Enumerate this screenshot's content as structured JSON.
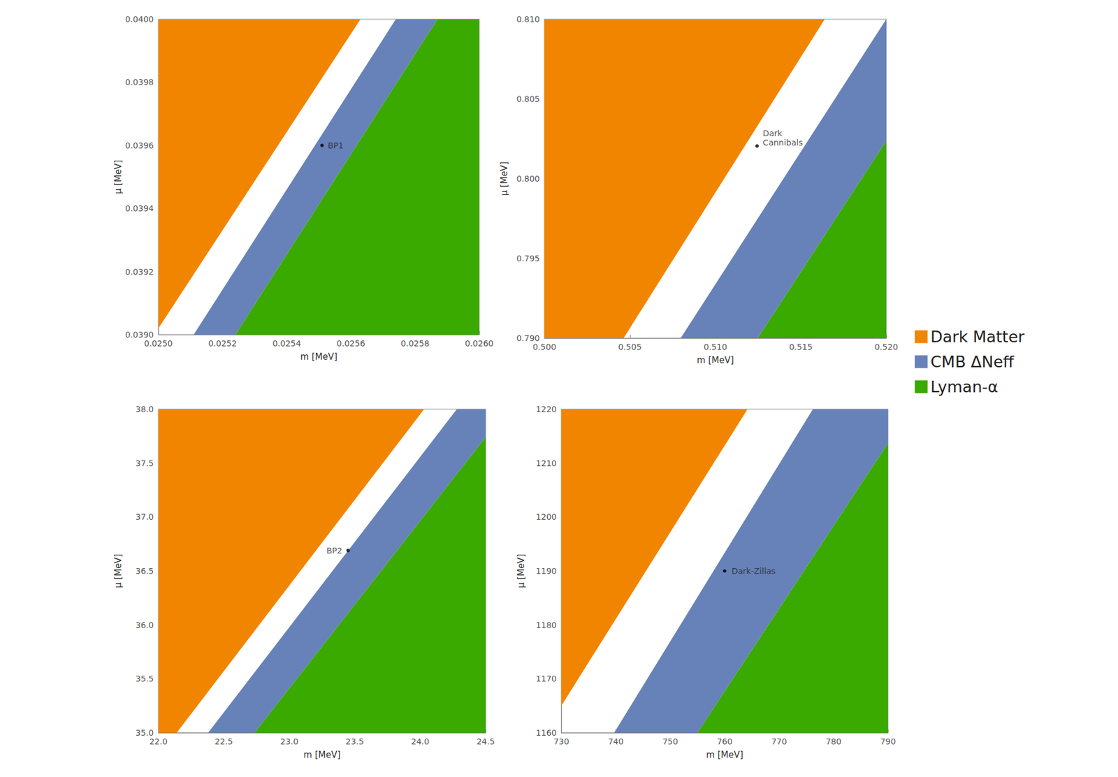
{
  "chart_data": [
    {
      "type": "area",
      "x_label": "m [MeV]",
      "y_label": "μ [MeV]",
      "xlim": [
        0.025,
        0.026
      ],
      "xticks": [
        {
          "value": 0.025,
          "label": "0.0250"
        },
        0.0252,
        0.0254,
        0.0256,
        0.0258,
        {
          "value": 0.026,
          "label": "0.0260"
        }
      ],
      "ylim": [
        0.039,
        0.04
      ],
      "yticks": [
        {
          "value": 0.039,
          "label": "0.0390"
        },
        0.0392,
        0.0394,
        0.0396,
        0.0398,
        {
          "value": 0.04,
          "label": "0.0400"
        }
      ],
      "grid": false,
      "legend": "right",
      "series": [
        {
          "name": "Dark Matter",
          "color": "#f28500",
          "x": [
            0.025,
            0.025,
            0.02563
          ],
          "y": [
            0.03902,
            0.04,
            0.04
          ]
        },
        {
          "name": "CMB ΔNeff",
          "color": "#6782b9",
          "x": [
            0.02511,
            0.02574,
            0.02587,
            0.02524
          ],
          "y": [
            0.039,
            0.04,
            0.04,
            0.039
          ]
        },
        {
          "name": "Lyman-α",
          "color": "#3aa900",
          "x": [
            0.02524,
            0.02587,
            0.026,
            0.026
          ],
          "y": [
            0.039,
            0.04,
            0.04,
            0.039
          ]
        }
      ],
      "annotations": [
        {
          "text": "BP1",
          "x": 0.02551,
          "y": 0.0396
        }
      ]
    },
    {
      "type": "area",
      "x_label": "m [MeV]",
      "y_label": "μ [MeV]",
      "xlim": [
        0.5,
        0.52
      ],
      "xticks": [
        {
          "value": 0.5,
          "label": "0.500"
        },
        0.505,
        {
          "value": 0.51,
          "label": "0.510"
        },
        0.515,
        {
          "value": 0.52,
          "label": "0.520"
        }
      ],
      "ylim": [
        0.79,
        0.81
      ],
      "yticks": [
        {
          "value": 0.79,
          "label": "0.790"
        },
        0.795,
        {
          "value": 0.8,
          "label": "0.800"
        },
        0.805,
        {
          "value": 0.81,
          "label": "0.810"
        }
      ],
      "grid": false,
      "series": [
        {
          "name": "Dark Matter",
          "color": "#f28500",
          "x": [
            0.5,
            0.5,
            0.5164,
            0.50463
          ],
          "y": [
            0.79,
            0.81,
            0.81,
            0.79
          ]
        },
        {
          "name": "CMB ΔNeff",
          "color": "#6782b9",
          "x": [
            0.50797,
            0.52,
            0.52,
            0.51248
          ],
          "y": [
            0.79,
            0.81,
            0.80237,
            0.79
          ]
        },
        {
          "name": "Lyman-α",
          "color": "#3aa900",
          "x": [
            0.51248,
            0.52,
            0.52
          ],
          "y": [
            0.79,
            0.80237,
            0.79
          ]
        }
      ],
      "annotations": [
        {
          "text": "Dark\nCannibals",
          "x": 0.51244,
          "y": 0.80205
        }
      ]
    },
    {
      "type": "area",
      "x_label": "m [MeV]",
      "y_label": "μ [MeV]",
      "xlim": [
        22,
        24.5
      ],
      "xticks": [
        {
          "value": 22,
          "label": "22.0"
        },
        22.5,
        {
          "value": 23,
          "label": "23.0"
        },
        23.5,
        {
          "value": 24,
          "label": "24.0"
        },
        24.5
      ],
      "ylim": [
        35,
        38
      ],
      "yticks": [
        {
          "value": 35,
          "label": "35.0"
        },
        35.5,
        {
          "value": 36,
          "label": "36.0"
        },
        36.5,
        {
          "value": 37,
          "label": "37.0"
        },
        37.5,
        {
          "value": 38,
          "label": "38.0"
        }
      ],
      "grid": false,
      "series": [
        {
          "name": "Dark Matter",
          "color": "#f28500",
          "x": [
            22,
            22,
            24.03,
            22.14
          ],
          "y": [
            35,
            38,
            38,
            35
          ]
        },
        {
          "name": "CMB ΔNeff",
          "color": "#6782b9",
          "x": [
            22.38,
            24.28,
            24.5,
            24.5,
            22.735
          ],
          "y": [
            35,
            38,
            38,
            37.74,
            35
          ]
        },
        {
          "name": "Lyman-α",
          "color": "#3aa900",
          "x": [
            22.735,
            24.5,
            24.5
          ],
          "y": [
            35,
            37.74,
            35
          ]
        }
      ],
      "annotations": [
        {
          "text": "BP2",
          "x": 23.449,
          "y": 36.69
        }
      ]
    },
    {
      "type": "area",
      "x_label": "m [MeV]",
      "y_label": "μ [MeV]",
      "xlim": [
        730,
        790
      ],
      "xticks": [
        730,
        740,
        750,
        760,
        770,
        780,
        790
      ],
      "ylim": [
        1160,
        1220
      ],
      "yticks": [
        1160,
        1170,
        1180,
        1190,
        1200,
        1210,
        1220
      ],
      "grid": false,
      "series": [
        {
          "name": "Dark Matter",
          "color": "#f28500",
          "x": [
            730,
            730,
            764.2
          ],
          "y": [
            1165,
            1220,
            1220
          ]
        },
        {
          "name": "CMB ΔNeff",
          "color": "#6782b9",
          "x": [
            739.7,
            776.2,
            790,
            790,
            755
          ],
          "y": [
            1160,
            1220,
            1220,
            1213.7,
            1160
          ]
        },
        {
          "name": "Lyman-α",
          "color": "#3aa900",
          "x": [
            755,
            790,
            790
          ],
          "y": [
            1160,
            1213.7,
            1160
          ]
        }
      ],
      "annotations": [
        {
          "text": "Dark-Zillas",
          "x": 760,
          "y": 1190
        }
      ]
    }
  ]
}
